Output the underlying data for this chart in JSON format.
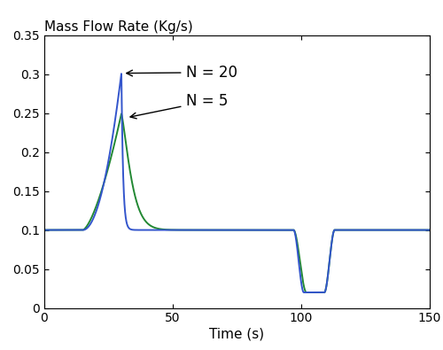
{
  "title": "Mass Flow Rate (Kg/s)",
  "xlabel": "Time (s)",
  "xlim": [
    0,
    150
  ],
  "ylim": [
    0,
    0.35
  ],
  "xticks": [
    0,
    50,
    100,
    150
  ],
  "yticks": [
    0,
    0.05,
    0.1,
    0.15,
    0.2,
    0.25,
    0.3,
    0.35
  ],
  "color_n20": "#3355cc",
  "color_n5": "#228833",
  "linewidth": 1.4,
  "annotation_n20": "N = 20",
  "annotation_n5": "N = 5",
  "figsize": [
    5.0,
    3.95
  ],
  "dpi": 100,
  "peak_time": 30,
  "peak_n20": 0.301,
  "peak_n5": 0.249,
  "baseline": 0.1,
  "trough": 0.02,
  "step_down_t": 97,
  "step_up_t": 110
}
